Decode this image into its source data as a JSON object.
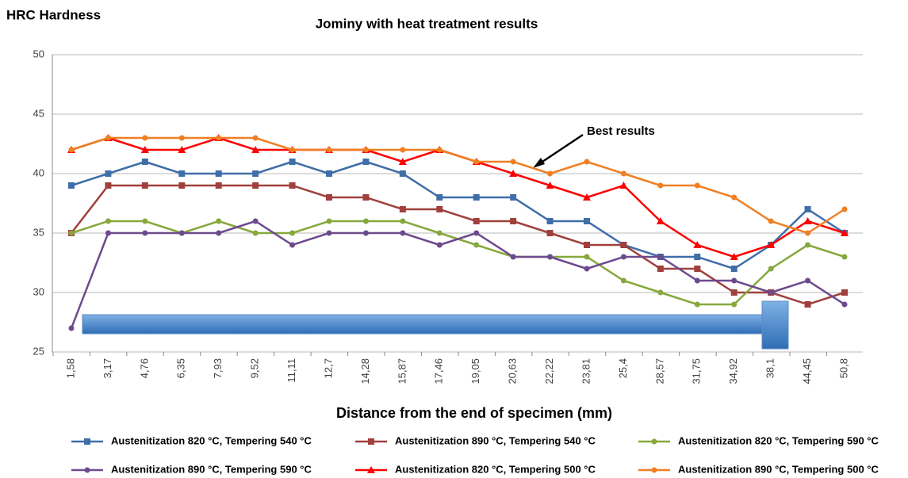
{
  "chart_data": {
    "type": "line",
    "title": "Jominy with heat treatment results",
    "y_label": "HRC Hardness",
    "x_label": "Distance from the end of specimen (mm)",
    "annotation": "Best results",
    "categories": [
      "1,58",
      "3,17",
      "4,76",
      "6,35",
      "7,93",
      "9,52",
      "11,11",
      "12,7",
      "14,28",
      "15,87",
      "17,46",
      "19,05",
      "20,63",
      "22,22",
      "23,81",
      "25,4",
      "28,57",
      "31,75",
      "34,92",
      "38,1",
      "44,45",
      "50,8"
    ],
    "ylim": [
      25,
      50
    ],
    "yticks": [
      25,
      30,
      35,
      40,
      45,
      50
    ],
    "grid": true,
    "series": [
      {
        "name": "Austenitization 820 °C, Tempering 540 °C",
        "color": "#3f6ea8",
        "marker": "square",
        "values": [
          39,
          40,
          41,
          40,
          40,
          40,
          41,
          40,
          41,
          40,
          38,
          38,
          38,
          36,
          36,
          34,
          33,
          33,
          32,
          34,
          37,
          35
        ]
      },
      {
        "name": "Austenitization 890 °C, Tempering 540 °C",
        "color": "#a0403c",
        "marker": "square",
        "values": [
          35,
          39,
          39,
          39,
          39,
          39,
          39,
          38,
          38,
          37,
          37,
          36,
          36,
          35,
          34,
          34,
          32,
          32,
          30,
          30,
          29,
          30
        ]
      },
      {
        "name": "Austenitization 820 °C, Tempering 590 °C",
        "color": "#86a83c",
        "marker": "circle",
        "values": [
          35,
          36,
          36,
          35,
          36,
          35,
          35,
          36,
          36,
          36,
          35,
          34,
          33,
          33,
          33,
          31,
          30,
          29,
          29,
          32,
          34,
          33
        ]
      },
      {
        "name": "Austenitization 890 °C, Tempering 590 °C",
        "color": "#6d4a8e",
        "marker": "circle",
        "values": [
          27,
          35,
          35,
          35,
          35,
          36,
          34,
          35,
          35,
          35,
          34,
          35,
          33,
          33,
          32,
          33,
          33,
          31,
          31,
          30,
          31,
          29
        ]
      },
      {
        "name": "Austenitization 820 °C, Tempering 500 °C",
        "color": "#ff0000",
        "marker": "triangle",
        "values": [
          42,
          43,
          42,
          42,
          43,
          42,
          42,
          42,
          42,
          41,
          42,
          41,
          40,
          39,
          38,
          39,
          36,
          34,
          33,
          34,
          36,
          35
        ]
      },
      {
        "name": "Austenitization 890 °C, Tempering 500 °C",
        "color": "#f07f22",
        "marker": "circle",
        "values": [
          42,
          43,
          43,
          43,
          43,
          43,
          42,
          42,
          42,
          42,
          42,
          41,
          41,
          40,
          41,
          40,
          39,
          39,
          38,
          36,
          35,
          37
        ]
      }
    ]
  }
}
